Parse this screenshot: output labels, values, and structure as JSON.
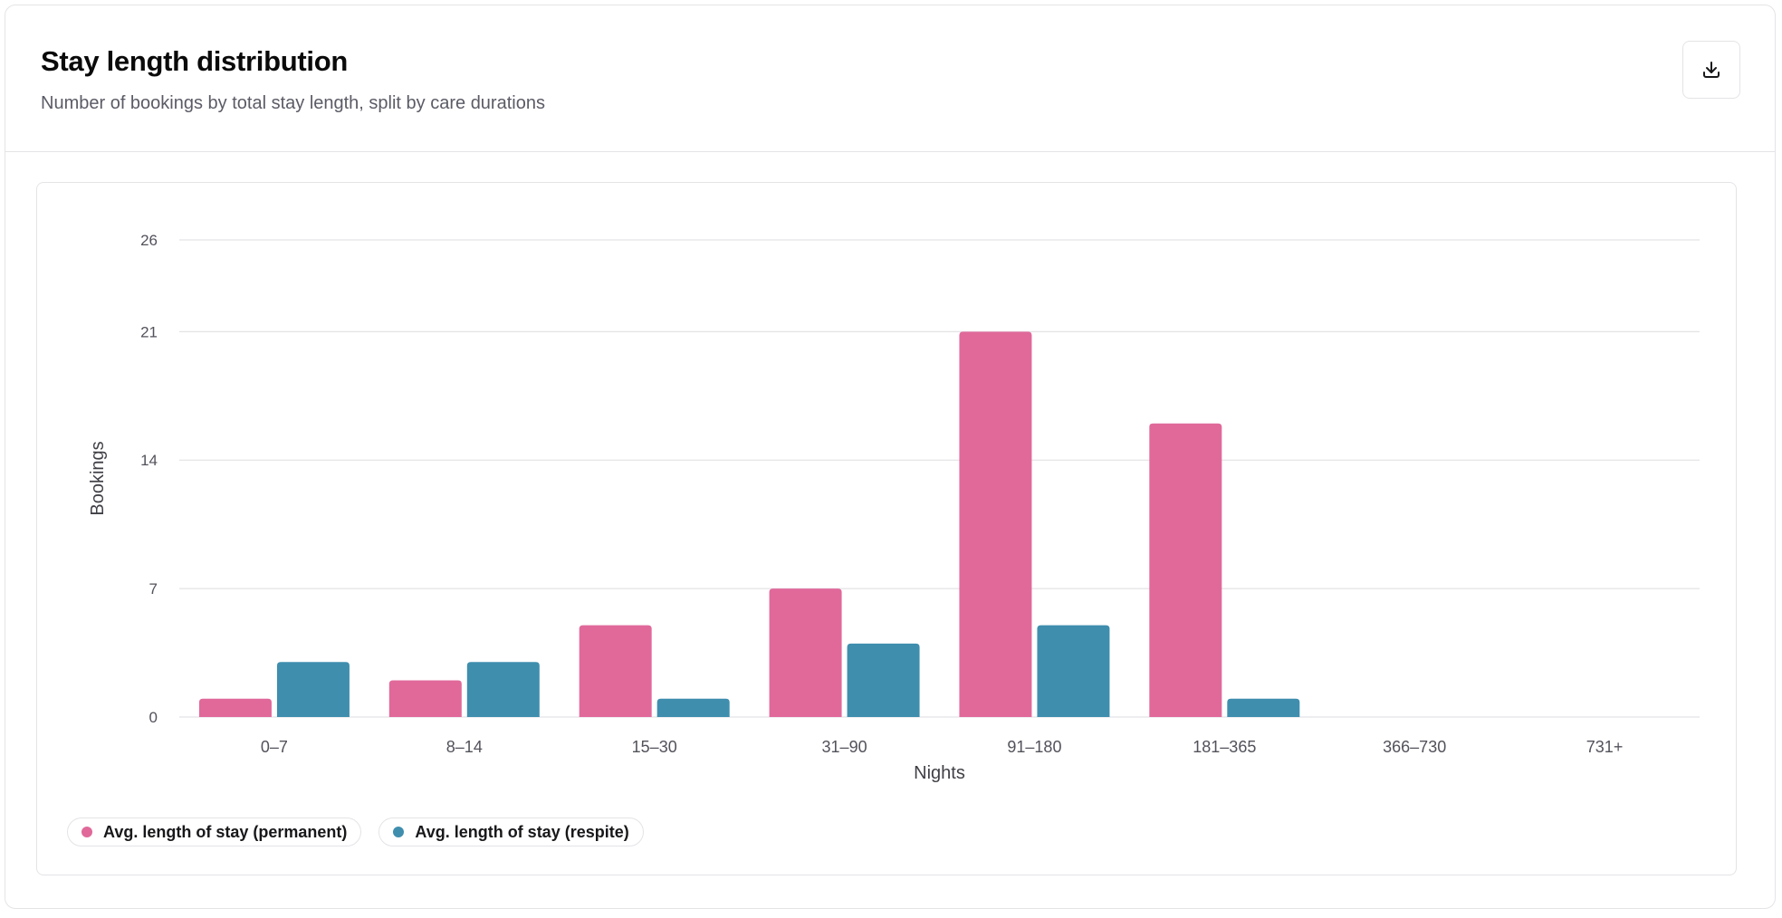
{
  "header": {
    "title": "Stay length distribution",
    "subtitle": "Number of bookings by total stay length, split by care durations",
    "download_icon": "download-icon"
  },
  "colors": {
    "permanent": "#e0699a",
    "respite": "#3f8eae",
    "grid": "#e4e4e7",
    "tick_text": "#52525b"
  },
  "chart_data": {
    "type": "bar",
    "title": "",
    "xlabel": "Nights",
    "ylabel": "Bookings",
    "categories": [
      "0–7",
      "8–14",
      "15–30",
      "31–90",
      "91–180",
      "181–365",
      "366–730",
      "731+"
    ],
    "series": [
      {
        "name": "Avg. length of stay (permanent)",
        "values": [
          1,
          2,
          5,
          7,
          21,
          16,
          0,
          0
        ]
      },
      {
        "name": "Avg. length of stay (respite)",
        "values": [
          3,
          3,
          1,
          4,
          5,
          1,
          0,
          0
        ]
      }
    ],
    "yticks": [
      0,
      7,
      14,
      21,
      26
    ],
    "ylim": [
      0,
      26
    ],
    "grid": true,
    "legend_position": "bottom-left"
  }
}
